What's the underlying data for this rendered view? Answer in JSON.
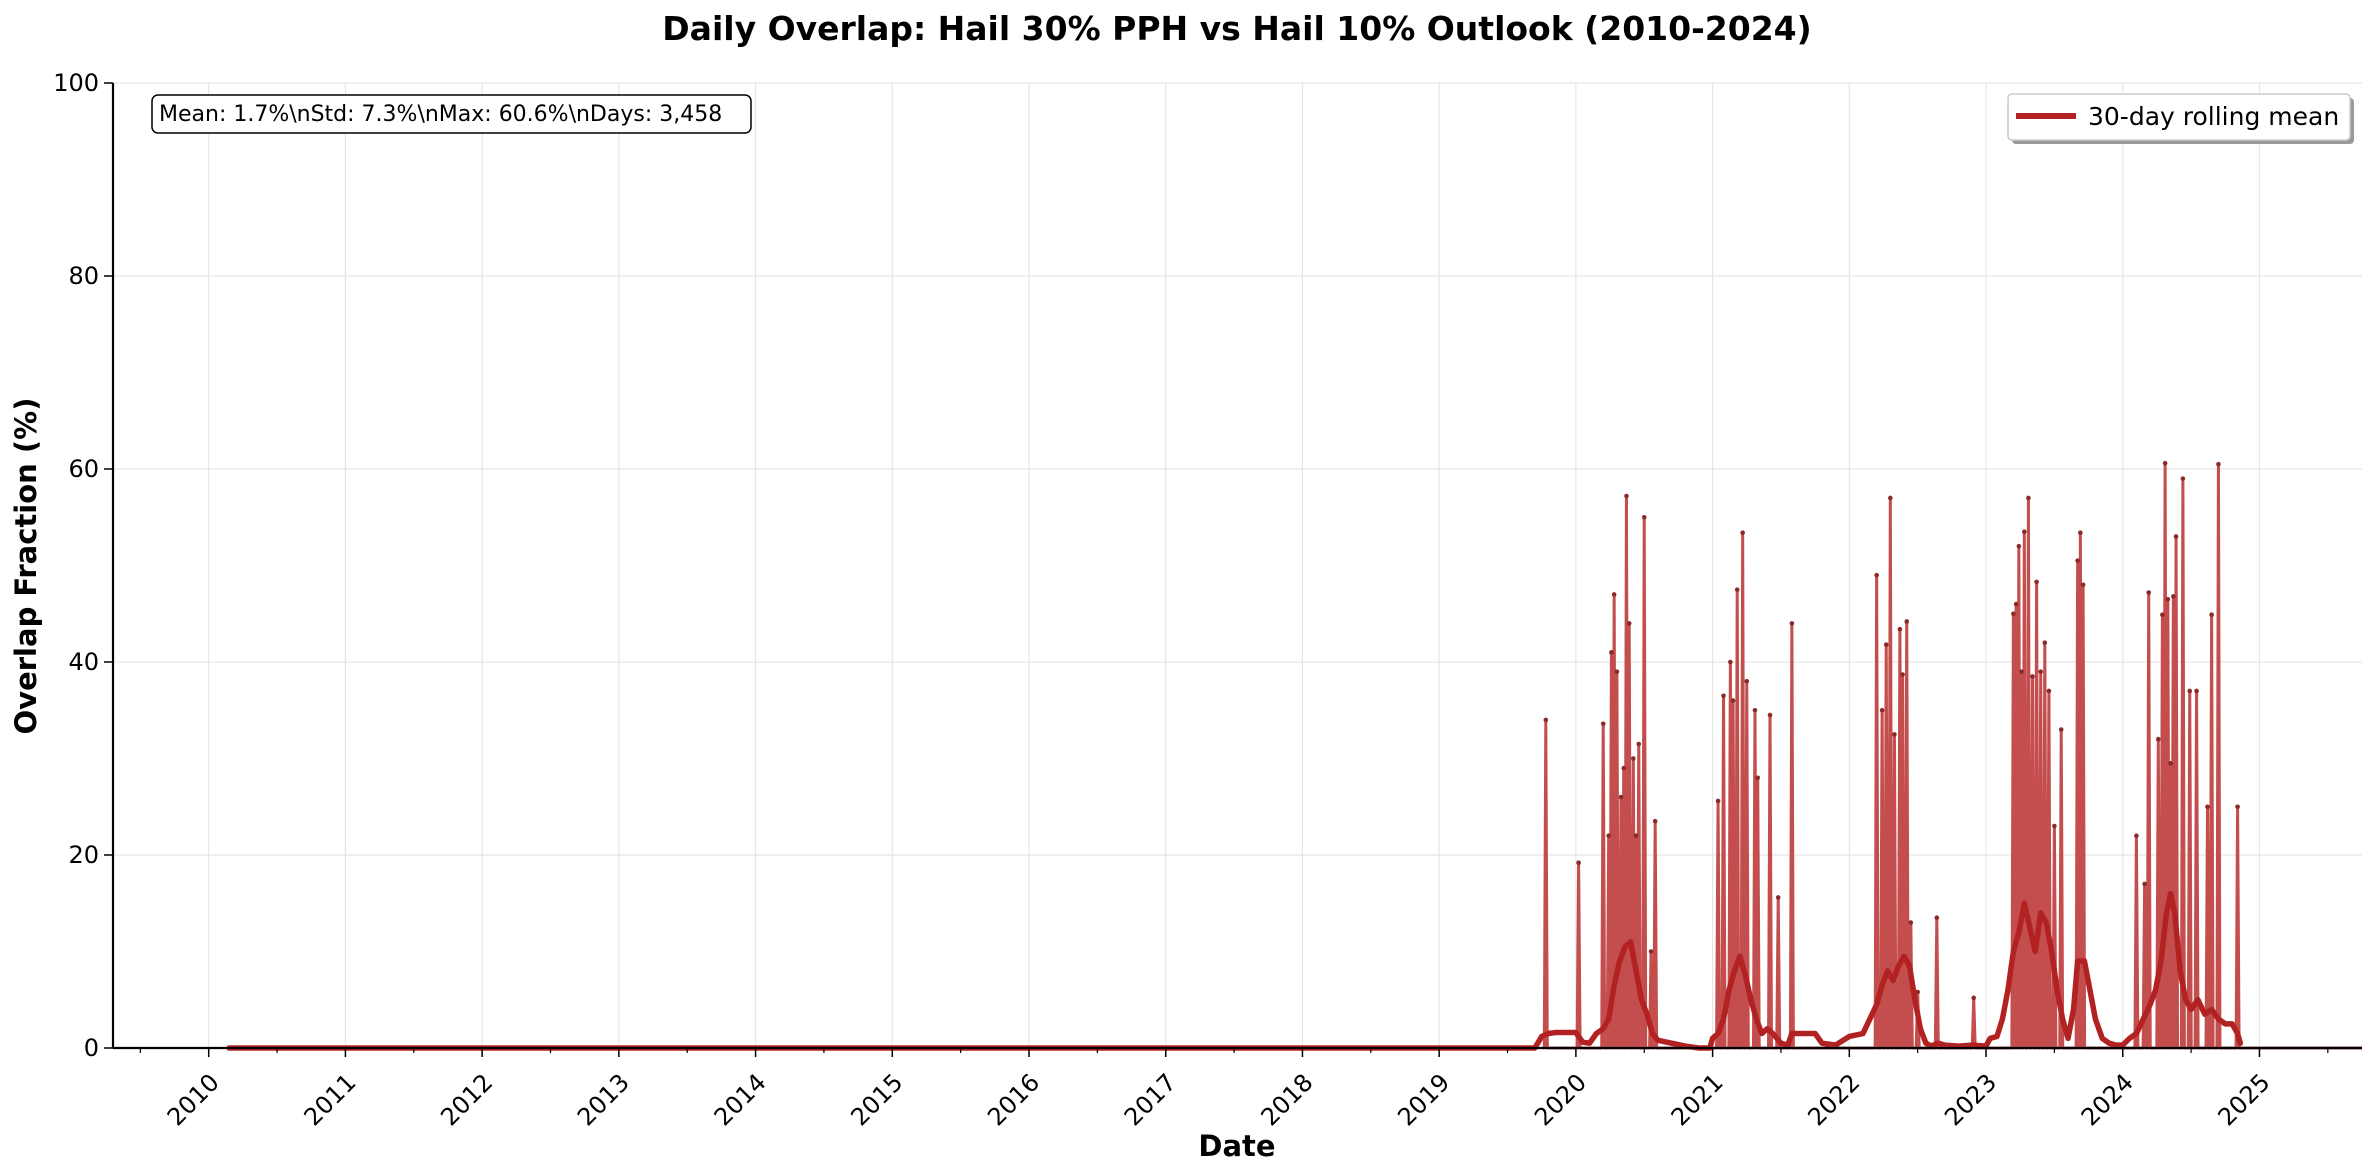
{
  "chart_data": {
    "type": "line",
    "title": "Daily Overlap: Hail 30% PPH vs Hail 10% Outlook (2010-2024)",
    "xlabel": "Date",
    "ylabel": "Overlap Fraction (%)",
    "xlim": [
      2009.3,
      2025.75
    ],
    "ylim": [
      0,
      100
    ],
    "yticks": [
      "0",
      "20",
      "40",
      "60",
      "80",
      "100"
    ],
    "xticks": [
      "2010",
      "2011",
      "2012",
      "2013",
      "2014",
      "2015",
      "2016",
      "2017",
      "2018",
      "2019",
      "2020",
      "2021",
      "2022",
      "2023",
      "2024",
      "2025"
    ],
    "grid": true,
    "legend_position": "upper right",
    "stats_box": "Mean: 1.7%\\nStd: 7.3%\\nMax: 60.6%\\nDays: 3,458",
    "colors": {
      "daily": "#c44e4e",
      "rolling": "#b22222"
    },
    "series": [
      {
        "name": "",
        "kind": "daily",
        "spikes": [
          [
            2019.78,
            34.0
          ],
          [
            2020.02,
            19.2
          ],
          [
            2020.2,
            33.6
          ],
          [
            2020.24,
            22.0
          ],
          [
            2020.26,
            41.0
          ],
          [
            2020.28,
            47.0
          ],
          [
            2020.3,
            39.0
          ],
          [
            2020.33,
            26.0
          ],
          [
            2020.35,
            29.0
          ],
          [
            2020.37,
            57.2
          ],
          [
            2020.39,
            44.0
          ],
          [
            2020.42,
            30.0
          ],
          [
            2020.44,
            22.0
          ],
          [
            2020.46,
            31.5
          ],
          [
            2020.5,
            55.0
          ],
          [
            2020.55,
            10.0
          ],
          [
            2020.58,
            23.5
          ],
          [
            2021.04,
            25.6
          ],
          [
            2021.08,
            36.5
          ],
          [
            2021.13,
            40.0
          ],
          [
            2021.15,
            36.0
          ],
          [
            2021.18,
            47.5
          ],
          [
            2021.22,
            53.4
          ],
          [
            2021.25,
            38.0
          ],
          [
            2021.31,
            35.0
          ],
          [
            2021.33,
            28.0
          ],
          [
            2021.42,
            34.5
          ],
          [
            2021.48,
            15.6
          ],
          [
            2021.58,
            44.0
          ],
          [
            2022.2,
            49.0
          ],
          [
            2022.24,
            35.0
          ],
          [
            2022.27,
            41.8
          ],
          [
            2022.3,
            57.0
          ],
          [
            2022.33,
            32.5
          ],
          [
            2022.37,
            43.4
          ],
          [
            2022.39,
            38.7
          ],
          [
            2022.42,
            44.2
          ],
          [
            2022.45,
            13.0
          ],
          [
            2022.5,
            5.8
          ],
          [
            2022.64,
            13.5
          ],
          [
            2022.91,
            5.2
          ],
          [
            2023.2,
            45.0
          ],
          [
            2023.22,
            46.0
          ],
          [
            2023.24,
            52.0
          ],
          [
            2023.26,
            39.0
          ],
          [
            2023.28,
            53.5
          ],
          [
            2023.31,
            57.0
          ],
          [
            2023.34,
            38.5
          ],
          [
            2023.37,
            48.3
          ],
          [
            2023.4,
            39.0
          ],
          [
            2023.43,
            42.0
          ],
          [
            2023.46,
            37.0
          ],
          [
            2023.5,
            23.0
          ],
          [
            2023.55,
            33.0
          ],
          [
            2023.67,
            50.5
          ],
          [
            2023.69,
            53.4
          ],
          [
            2023.71,
            48.0
          ],
          [
            2024.1,
            22.0
          ],
          [
            2024.16,
            17.0
          ],
          [
            2024.19,
            47.2
          ],
          [
            2024.26,
            32.0
          ],
          [
            2024.29,
            44.9
          ],
          [
            2024.31,
            60.6
          ],
          [
            2024.33,
            46.5
          ],
          [
            2024.35,
            29.5
          ],
          [
            2024.37,
            46.8
          ],
          [
            2024.39,
            53.0
          ],
          [
            2024.44,
            59.0
          ],
          [
            2024.49,
            37.0
          ],
          [
            2024.54,
            37.0
          ],
          [
            2024.62,
            25.0
          ],
          [
            2024.65,
            44.9
          ],
          [
            2024.7,
            60.5
          ],
          [
            2024.84,
            25.0
          ]
        ]
      },
      {
        "name": "30-day rolling mean",
        "kind": "rolling",
        "points": [
          [
            2010.15,
            0
          ],
          [
            2019.7,
            0
          ],
          [
            2019.75,
            1.2
          ],
          [
            2019.8,
            1.5
          ],
          [
            2019.85,
            1.6
          ],
          [
            2020.0,
            1.6
          ],
          [
            2020.05,
            0.6
          ],
          [
            2020.1,
            0.5
          ],
          [
            2020.15,
            1.5
          ],
          [
            2020.2,
            2.0
          ],
          [
            2020.24,
            3.0
          ],
          [
            2020.28,
            6.5
          ],
          [
            2020.32,
            9.0
          ],
          [
            2020.36,
            10.5
          ],
          [
            2020.4,
            11.0
          ],
          [
            2020.44,
            8.0
          ],
          [
            2020.48,
            5.0
          ],
          [
            2020.52,
            3.5
          ],
          [
            2020.56,
            1.5
          ],
          [
            2020.6,
            0.8
          ],
          [
            2020.7,
            0.5
          ],
          [
            2020.8,
            0.2
          ],
          [
            2020.9,
            0
          ],
          [
            2020.98,
            0
          ],
          [
            2021.0,
            1.0
          ],
          [
            2021.04,
            1.5
          ],
          [
            2021.08,
            3.0
          ],
          [
            2021.12,
            6.0
          ],
          [
            2021.16,
            8.0
          ],
          [
            2021.2,
            9.5
          ],
          [
            2021.24,
            7.5
          ],
          [
            2021.28,
            5.0
          ],
          [
            2021.32,
            3.0
          ],
          [
            2021.36,
            1.5
          ],
          [
            2021.4,
            2.0
          ],
          [
            2021.44,
            1.5
          ],
          [
            2021.5,
            0.5
          ],
          [
            2021.55,
            0.3
          ],
          [
            2021.58,
            1.5
          ],
          [
            2021.65,
            1.5
          ],
          [
            2021.75,
            1.5
          ],
          [
            2021.8,
            0.5
          ],
          [
            2021.9,
            0.3
          ],
          [
            2022.0,
            1.2
          ],
          [
            2022.1,
            1.5
          ],
          [
            2022.15,
            3.0
          ],
          [
            2022.2,
            4.5
          ],
          [
            2022.24,
            6.5
          ],
          [
            2022.28,
            8.0
          ],
          [
            2022.32,
            7.0
          ],
          [
            2022.36,
            8.5
          ],
          [
            2022.4,
            9.5
          ],
          [
            2022.44,
            8.5
          ],
          [
            2022.48,
            5.0
          ],
          [
            2022.52,
            2.0
          ],
          [
            2022.56,
            0.5
          ],
          [
            2022.6,
            0.2
          ],
          [
            2022.65,
            0.5
          ],
          [
            2022.7,
            0.3
          ],
          [
            2022.8,
            0.2
          ],
          [
            2022.9,
            0.3
          ],
          [
            2023.0,
            0.2
          ],
          [
            2023.03,
            1.0
          ],
          [
            2023.08,
            1.2
          ],
          [
            2023.12,
            3.0
          ],
          [
            2023.16,
            6.0
          ],
          [
            2023.2,
            10.0
          ],
          [
            2023.24,
            12.0
          ],
          [
            2023.28,
            15.0
          ],
          [
            2023.32,
            12.5
          ],
          [
            2023.36,
            10.0
          ],
          [
            2023.4,
            14.0
          ],
          [
            2023.44,
            13.0
          ],
          [
            2023.48,
            10.0
          ],
          [
            2023.52,
            6.0
          ],
          [
            2023.56,
            3.0
          ],
          [
            2023.6,
            1.0
          ],
          [
            2023.64,
            4.0
          ],
          [
            2023.67,
            9.0
          ],
          [
            2023.72,
            9.0
          ],
          [
            2023.76,
            6.0
          ],
          [
            2023.8,
            3.0
          ],
          [
            2023.85,
            1.0
          ],
          [
            2023.9,
            0.5
          ],
          [
            2023.95,
            0.3
          ],
          [
            2024.0,
            0.3
          ],
          [
            2024.05,
            1.0
          ],
          [
            2024.1,
            1.5
          ],
          [
            2024.15,
            3.0
          ],
          [
            2024.2,
            4.5
          ],
          [
            2024.24,
            6.0
          ],
          [
            2024.28,
            9.0
          ],
          [
            2024.32,
            14.0
          ],
          [
            2024.35,
            16.0
          ],
          [
            2024.38,
            14.0
          ],
          [
            2024.42,
            8.0
          ],
          [
            2024.46,
            5.0
          ],
          [
            2024.5,
            4.0
          ],
          [
            2024.55,
            5.0
          ],
          [
            2024.6,
            3.5
          ],
          [
            2024.65,
            4.0
          ],
          [
            2024.7,
            3.0
          ],
          [
            2024.75,
            2.5
          ],
          [
            2024.8,
            2.5
          ],
          [
            2024.84,
            1.5
          ],
          [
            2024.86,
            0.5
          ]
        ]
      }
    ]
  }
}
